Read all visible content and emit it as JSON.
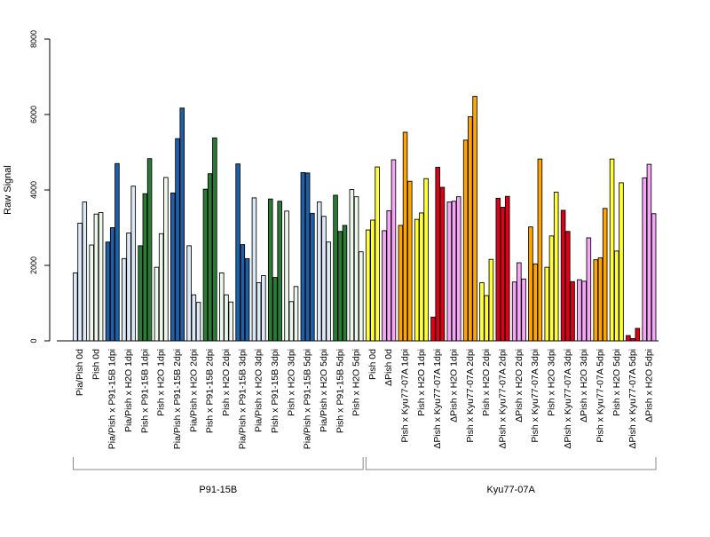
{
  "chart_data": {
    "type": "bar",
    "ylabel": "Raw Signal",
    "xlabel": "",
    "title": "",
    "ylim": [
      0,
      8000
    ],
    "yticks": [
      0,
      2000,
      4000,
      6000,
      8000
    ],
    "grid": false,
    "bar_groups": [
      {
        "label": "Pia/Pish 0d",
        "colors": [
          "#dde8f6",
          "#dde8f6",
          "#dde8f6"
        ],
        "values": [
          1800,
          3120,
          3680
        ]
      },
      {
        "label": "Pish 0d",
        "colors": [
          "#edf7ea",
          "#edf7ea",
          "#edf7ea"
        ],
        "values": [
          2540,
          3360,
          3400
        ]
      },
      {
        "label": "Pia/Pish x P91-15B 1dpi",
        "colors": [
          "#1f5fa8",
          "#1f5fa8",
          "#1f5fa8"
        ],
        "values": [
          2620,
          3000,
          4700
        ]
      },
      {
        "label": "Pia/Pish x H2O 1dpi",
        "colors": [
          "#dde8f6",
          "#dde8f6",
          "#dde8f6"
        ],
        "values": [
          2180,
          2860,
          4100
        ]
      },
      {
        "label": "Pish x P91-15B 1dpi",
        "colors": [
          "#2b7a36",
          "#2b7a36",
          "#2b7a36"
        ],
        "values": [
          2520,
          3900,
          4830
        ]
      },
      {
        "label": "Pish x H2O 1dpi",
        "colors": [
          "#edf7ea",
          "#edf7ea",
          "#edf7ea"
        ],
        "values": [
          1950,
          2840,
          4330
        ]
      },
      {
        "label": "Pia/Pish x P91-15B 2dpi",
        "colors": [
          "#1f5fa8",
          "#1f5fa8",
          "#1f5fa8"
        ],
        "values": [
          3920,
          5360,
          6170
        ]
      },
      {
        "label": "Pia/Pish x H2O 2dpi",
        "colors": [
          "#dde8f6",
          "#dde8f6",
          "#dde8f6"
        ],
        "values": [
          2520,
          1220,
          1020
        ]
      },
      {
        "label": "Pish x P91-15B 2dpi",
        "colors": [
          "#2b7a36",
          "#2b7a36",
          "#2b7a36"
        ],
        "values": [
          4020,
          4430,
          5380
        ]
      },
      {
        "label": "Pish x H2O 2dpi",
        "colors": [
          "#edf7ea",
          "#edf7ea",
          "#edf7ea"
        ],
        "values": [
          1800,
          1220,
          1030
        ]
      },
      {
        "label": "Pia/Pish x P91-15B 3dpi",
        "colors": [
          "#1f5fa8",
          "#1f5fa8",
          "#1f5fa8"
        ],
        "values": [
          4690,
          2550,
          2180
        ]
      },
      {
        "label": "Pia/Pish x H2O 3dpi",
        "colors": [
          "#dde8f6",
          "#dde8f6",
          "#dde8f6"
        ],
        "values": [
          3790,
          1540,
          1730
        ]
      },
      {
        "label": "Pish x P91-15B 3dpi",
        "colors": [
          "#2b7a36",
          "#2b7a36",
          "#2b7a36"
        ],
        "values": [
          3760,
          1680,
          3700
        ]
      },
      {
        "label": "Pish x H2O 3dpi",
        "colors": [
          "#edf7ea",
          "#edf7ea",
          "#edf7ea"
        ],
        "values": [
          3440,
          1040,
          1440
        ]
      },
      {
        "label": "Pia/Pish x P91-15B 5dpi",
        "colors": [
          "#1f5fa8",
          "#1f5fa8",
          "#1f5fa8"
        ],
        "values": [
          4460,
          4450,
          3380
        ]
      },
      {
        "label": "Pia/Pish x H2O 5dpi",
        "colors": [
          "#dde8f6",
          "#dde8f6",
          "#dde8f6"
        ],
        "values": [
          3680,
          3300,
          2620
        ]
      },
      {
        "label": "Pish x P91-15B 5dpi",
        "colors": [
          "#2b7a36",
          "#2b7a36",
          "#2b7a36"
        ],
        "values": [
          3860,
          2900,
          3060
        ]
      },
      {
        "label": "Pish x H2O 5dpi",
        "colors": [
          "#edf7ea",
          "#edf7ea",
          "#edf7ea"
        ],
        "values": [
          4010,
          3820,
          2360
        ]
      },
      {
        "label": "Pish 0d",
        "colors": [
          "#ffff33",
          "#ffff33",
          "#ffff33"
        ],
        "values": [
          2940,
          3200,
          4610
        ]
      },
      {
        "label": "ΔPish 0d",
        "colors": [
          "#f5a6f5",
          "#f5a6f5",
          "#f5a6f5"
        ],
        "values": [
          2920,
          3450,
          4800
        ]
      },
      {
        "label": "Pish x Kyu77-07A 1dpi",
        "colors": [
          "#ffa500",
          "#ffa500",
          "#ffa500"
        ],
        "values": [
          3060,
          5530,
          4230
        ]
      },
      {
        "label": "Pish x H2O 1dpi",
        "colors": [
          "#ffff33",
          "#ffff33",
          "#ffff33"
        ],
        "values": [
          3220,
          3390,
          4300
        ]
      },
      {
        "label": "ΔPish x Kyu77-07A 1dpi",
        "colors": [
          "#dd0016",
          "#dd0016",
          "#dd0016"
        ],
        "values": [
          630,
          4600,
          4070
        ]
      },
      {
        "label": "ΔPish x H2O 1dpi",
        "colors": [
          "#f5a6f5",
          "#f5a6f5",
          "#f5a6f5"
        ],
        "values": [
          3680,
          3700,
          3820
        ]
      },
      {
        "label": "Pish x Kyu77-07A 2dpi",
        "colors": [
          "#ffa500",
          "#ffa500",
          "#ffa500"
        ],
        "values": [
          5320,
          5940,
          6480
        ]
      },
      {
        "label": "Pish x H2O 2dpi",
        "colors": [
          "#ffff33",
          "#ffff33",
          "#ffff33"
        ],
        "values": [
          1540,
          1200,
          2160
        ]
      },
      {
        "label": "ΔPish x Kyu77-07A 2dpi",
        "colors": [
          "#dd0016",
          "#dd0016",
          "#dd0016"
        ],
        "values": [
          3780,
          3540,
          3830
        ]
      },
      {
        "label": "ΔPish x H2O 2dpi",
        "colors": [
          "#f5a6f5",
          "#f5a6f5",
          "#f5a6f5"
        ],
        "values": [
          1560,
          2070,
          1640
        ]
      },
      {
        "label": "Pish x Kyu77-07A 3dpi",
        "colors": [
          "#ffa500",
          "#ffa500",
          "#ffa500"
        ],
        "values": [
          3020,
          2040,
          4820
        ]
      },
      {
        "label": "Pish x H2O 3dpi",
        "colors": [
          "#ffff33",
          "#ffff33",
          "#ffff33"
        ],
        "values": [
          1950,
          2780,
          3940
        ]
      },
      {
        "label": "ΔPish x Kyu77-07A 3dpi",
        "colors": [
          "#dd0016",
          "#dd0016",
          "#dd0016"
        ],
        "values": [
          3460,
          2900,
          1570
        ]
      },
      {
        "label": "ΔPish x H2O 3dpi",
        "colors": [
          "#f5a6f5",
          "#f5a6f5",
          "#f5a6f5"
        ],
        "values": [
          1620,
          1580,
          2730
        ]
      },
      {
        "label": "Pish x Kyu77-07A 5dpi",
        "colors": [
          "#ffa500",
          "#ffa500",
          "#ffa500"
        ],
        "values": [
          2150,
          2200,
          3510
        ]
      },
      {
        "label": "Pish x H2O 5dpi",
        "colors": [
          "#ffff33",
          "#ffff33",
          "#ffff33"
        ],
        "values": [
          4820,
          2380,
          4190
        ]
      },
      {
        "label": "ΔPish x Kyu77-07A 5dpi",
        "colors": [
          "#dd0016",
          "#dd0016",
          "#dd0016"
        ],
        "values": [
          140,
          60,
          330
        ]
      },
      {
        "label": "ΔPish x H2O 5dpi",
        "colors": [
          "#f5a6f5",
          "#f5a6f5",
          "#f5a6f5"
        ],
        "values": [
          4320,
          4680,
          3370
        ]
      }
    ],
    "brackets": [
      {
        "label": "P91-15B",
        "from_group": 0,
        "to_group": 17
      },
      {
        "label": "Kyu77-07A",
        "from_group": 18,
        "to_group": 35
      }
    ]
  }
}
